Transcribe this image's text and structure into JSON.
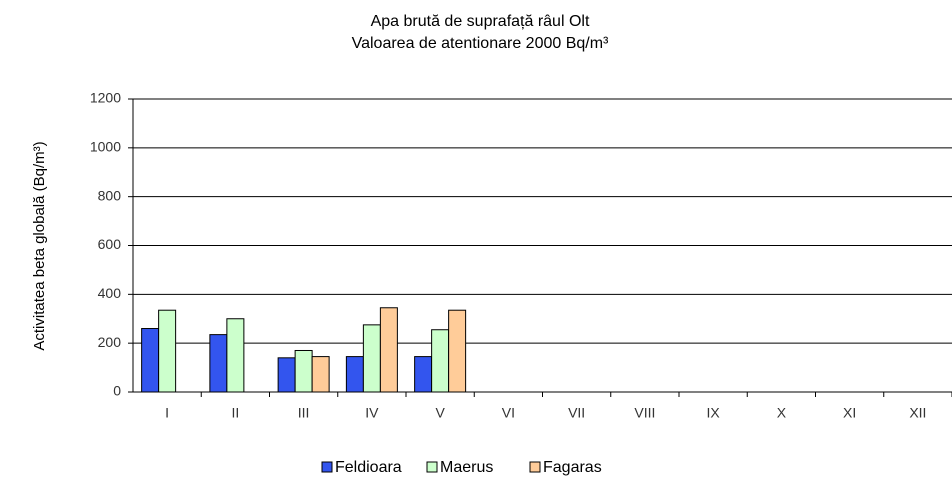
{
  "chart_data": {
    "type": "bar",
    "title": [
      "Apa brută de suprafață râul Olt",
      "Valoarea de atentionare 2000 Bq/m³"
    ],
    "y_label": "Activitatea beta globală (Bq/m³)",
    "categories": [
      "I",
      "II",
      "III",
      "IV",
      "V",
      "VI",
      "VII",
      "VIII",
      "IX",
      "X",
      "XI",
      "XII"
    ],
    "series": [
      {
        "name": "Feldioara",
        "color": "#3355ee",
        "values": [
          260,
          235,
          140,
          145,
          145,
          null,
          null,
          null,
          null,
          null,
          null,
          null
        ]
      },
      {
        "name": "Maerus",
        "color": "#ccffcc",
        "values": [
          335,
          300,
          170,
          275,
          255,
          null,
          null,
          null,
          null,
          null,
          null,
          null
        ]
      },
      {
        "name": "Fagaras",
        "color": "#ffcc99",
        "values": [
          null,
          null,
          145,
          345,
          335,
          null,
          null,
          null,
          null,
          null,
          null,
          null
        ]
      }
    ],
    "ylim": [
      0,
      1200
    ],
    "yticks": [
      0,
      200,
      400,
      600,
      800,
      1000,
      1200
    ],
    "grid": true,
    "legend": "bottom"
  }
}
